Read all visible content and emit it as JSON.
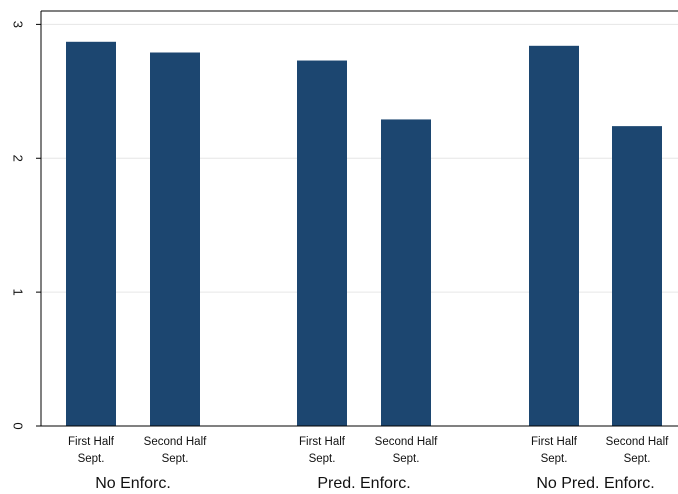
{
  "chart_data": {
    "type": "bar",
    "title": "",
    "xlabel": "",
    "ylabel": "",
    "ylim": [
      0,
      3.1
    ],
    "yticks": [
      0,
      1,
      2,
      3
    ],
    "ytick_labels": [
      "0",
      "1",
      "2",
      "3"
    ],
    "y_tick_label_orientation": "rotated",
    "grid": true,
    "bar_color": "#1c4670",
    "grid_color": "#e6e6e6",
    "groups": [
      {
        "label": "No Enforc.",
        "bars": [
          {
            "label_line1": "First Half",
            "label_line2": "Sept.",
            "value": 2.87
          },
          {
            "label_line1": "Second Half",
            "label_line2": "Sept.",
            "value": 2.79
          }
        ]
      },
      {
        "label": "Pred. Enforc.",
        "bars": [
          {
            "label_line1": "First Half",
            "label_line2": "Sept.",
            "value": 2.73
          },
          {
            "label_line1": "Second Half",
            "label_line2": "Sept.",
            "value": 2.29
          }
        ]
      },
      {
        "label": "No Pred. Enforc.",
        "bars": [
          {
            "label_line1": "First Half",
            "label_line2": "Sept.",
            "value": 2.84
          },
          {
            "label_line1": "Second Half",
            "label_line2": "Sept.",
            "value": 2.24
          }
        ]
      }
    ]
  }
}
